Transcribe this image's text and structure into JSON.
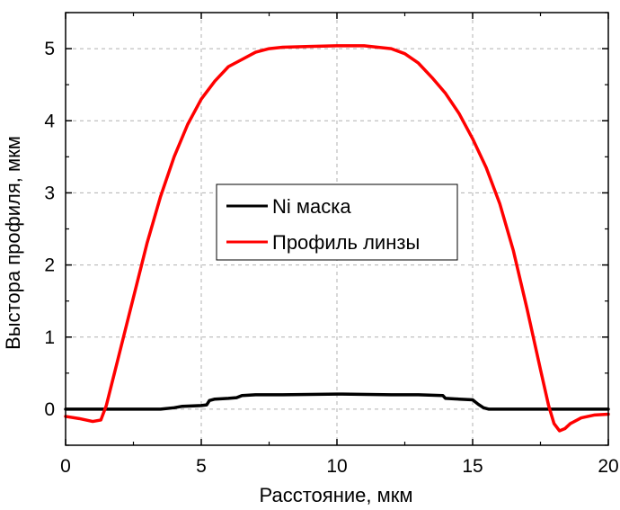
{
  "chart_data": {
    "type": "line",
    "title": "",
    "xlabel": "Расстояние, мкм",
    "ylabel": "Выстора профиля, мкм",
    "xlim": [
      0,
      20
    ],
    "ylim": [
      -0.5,
      5.5
    ],
    "xticks": [
      0,
      5,
      10,
      15,
      20
    ],
    "yticks": [
      0,
      1,
      2,
      3,
      4,
      5
    ],
    "xtick_labels": [
      "0",
      "5",
      "10",
      "15",
      "20"
    ],
    "ytick_labels": [
      "0",
      "1",
      "2",
      "3",
      "4",
      "5"
    ],
    "grid": true,
    "legend_position": "center-left",
    "series": [
      {
        "name": "Ni маска",
        "color": "#000000",
        "x": [
          0,
          3.5,
          4.0,
          4.3,
          5.0,
          5.2,
          5.3,
          5.5,
          6.0,
          6.3,
          6.5,
          7.0,
          8.0,
          10.0,
          12.0,
          13.0,
          13.9,
          14.0,
          14.5,
          15.0,
          15.2,
          15.4,
          15.6,
          20.0
        ],
        "y": [
          0,
          0,
          0.02,
          0.04,
          0.05,
          0.06,
          0.12,
          0.14,
          0.15,
          0.16,
          0.19,
          0.2,
          0.2,
          0.21,
          0.2,
          0.2,
          0.19,
          0.15,
          0.14,
          0.13,
          0.07,
          0.02,
          0,
          0
        ]
      },
      {
        "name": "Профиль линзы",
        "color": "#ff0000",
        "x": [
          0,
          0.5,
          1.0,
          1.3,
          1.5,
          1.7,
          2.0,
          2.5,
          3.0,
          3.5,
          4.0,
          4.5,
          5.0,
          5.5,
          6.0,
          6.5,
          7.0,
          7.5,
          8.0,
          9.0,
          10.0,
          11.0,
          12.0,
          12.5,
          13.0,
          13.5,
          14.0,
          14.5,
          15.0,
          15.5,
          16.0,
          16.5,
          17.0,
          17.5,
          17.8,
          18.0,
          18.2,
          18.4,
          18.6,
          19.0,
          19.5,
          20.0
        ],
        "y": [
          -0.1,
          -0.13,
          -0.17,
          -0.15,
          0.05,
          0.35,
          0.8,
          1.55,
          2.3,
          2.95,
          3.5,
          3.95,
          4.3,
          4.55,
          4.75,
          4.85,
          4.95,
          5.0,
          5.02,
          5.03,
          5.04,
          5.04,
          5.0,
          4.93,
          4.8,
          4.6,
          4.38,
          4.1,
          3.75,
          3.35,
          2.85,
          2.2,
          1.4,
          0.55,
          0.05,
          -0.2,
          -0.3,
          -0.27,
          -0.2,
          -0.12,
          -0.08,
          -0.07
        ]
      }
    ]
  }
}
